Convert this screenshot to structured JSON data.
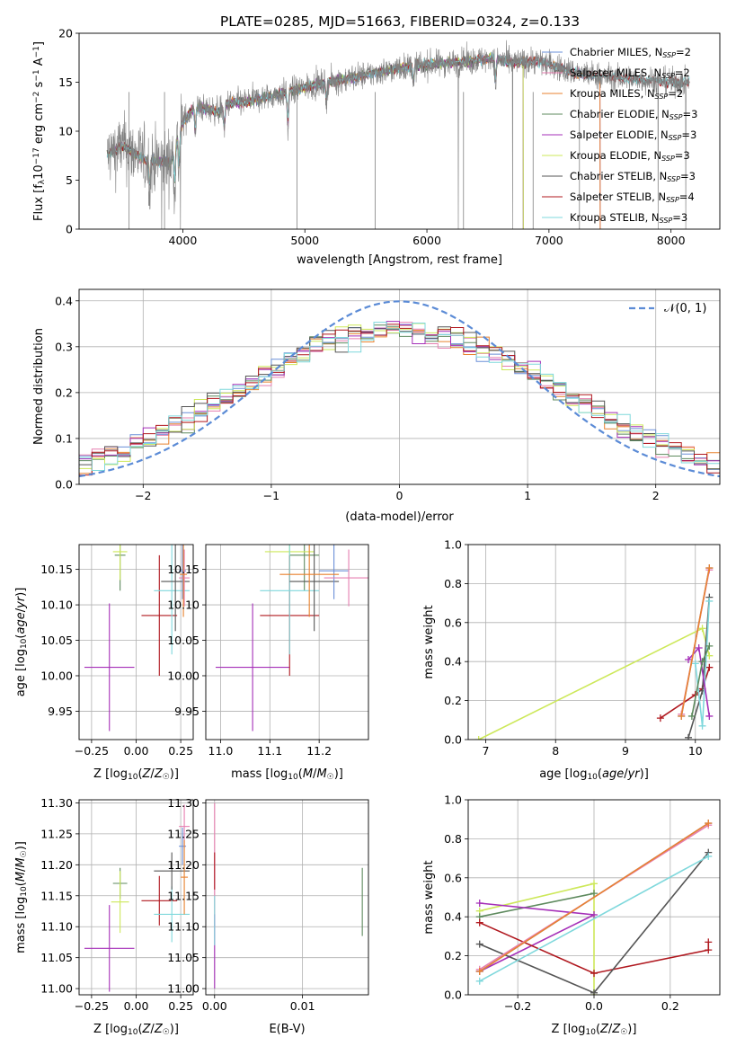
{
  "figure": {
    "title": "PLATE=0285, MJD=51663, FIBERID=0324, z=0.133"
  },
  "colors": {
    "Chabrier MILES": "#6a8fd8",
    "Salpeter MILES": "#e67fb0",
    "Kroupa MILES": "#e8822f",
    "Chabrier ELODIE": "#5e8a5e",
    "Salpeter ELODIE": "#a52fb8",
    "Kroupa ELODIE": "#cde85a",
    "Chabrier STELIB": "#555555",
    "Salpeter STELIB": "#b0181f",
    "Kroupa STELIB": "#7fd8dc"
  },
  "chart_data": [
    {
      "id": "spectrum",
      "type": "line",
      "xlabel": "wavelength [Angstrom, rest frame]",
      "ylabel": "Flux [f_λ 10^-17 erg cm^-2 s^-1 A^-1]",
      "xlim": [
        3150,
        8400
      ],
      "ylim": [
        0,
        20
      ],
      "xticks": [
        4000,
        5000,
        6000,
        7000,
        8000
      ],
      "yticks": [
        0,
        5,
        10,
        15,
        20
      ],
      "legend_position": "upper-right",
      "legend": [
        {
          "name": "Chabrier MILES",
          "label": "Chabrier MILES, N",
          "sub": "SSP",
          "tail": "=2"
        },
        {
          "name": "Salpeter MILES",
          "label": "Salpeter MILES, N",
          "sub": "SSP",
          "tail": "=2"
        },
        {
          "name": "Kroupa MILES",
          "label": "Kroupa MILES, N",
          "sub": "SSP",
          "tail": "=2"
        },
        {
          "name": "Chabrier ELODIE",
          "label": "Chabrier ELODIE, N",
          "sub": "SSP",
          "tail": "=3"
        },
        {
          "name": "Salpeter ELODIE",
          "label": "Salpeter ELODIE, N",
          "sub": "SSP",
          "tail": "=3"
        },
        {
          "name": "Kroupa ELODIE",
          "label": "Kroupa ELODIE, N",
          "sub": "SSP",
          "tail": "=3"
        },
        {
          "name": "Chabrier STELIB",
          "label": "Chabrier STELIB, N",
          "sub": "SSP",
          "tail": "=3"
        },
        {
          "name": "Salpeter STELIB",
          "label": "Salpeter STELIB, N",
          "sub": "SSP",
          "tail": "=4"
        },
        {
          "name": "Kroupa STELIB",
          "label": "Kroupa STELIB, N",
          "sub": "SSP",
          "tail": "=3"
        }
      ],
      "data_x": [
        3380,
        3500,
        3700,
        3900,
        4000,
        4100,
        4300,
        4350,
        4500,
        4700,
        4860,
        5000,
        5200,
        5400,
        5600,
        5800,
        6000,
        6200,
        6400,
        6563,
        6700,
        6900,
        7000,
        7200,
        7500,
        7800,
        8000,
        8150
      ],
      "data_y": [
        7.5,
        8.5,
        7.0,
        6.8,
        11.0,
        12.5,
        12.0,
        12.8,
        13.0,
        13.5,
        14.0,
        14.5,
        15.0,
        15.5,
        16.0,
        16.5,
        16.8,
        17.0,
        17.2,
        17.5,
        17.0,
        17.2,
        16.8,
        16.0,
        15.5,
        15.2,
        15.0,
        15.0
      ]
    },
    {
      "id": "residuals",
      "type": "line",
      "xlabel": "(data-model)/error",
      "ylabel": "Normed distribution",
      "xlim": [
        -2.5,
        2.5
      ],
      "ylim": [
        0,
        0.425
      ],
      "xticks": [
        -2,
        -1,
        0,
        1,
        2
      ],
      "yticks": [
        0.0,
        0.1,
        0.2,
        0.3,
        0.4
      ],
      "legend": "𝒩(0, 1)",
      "legend_position": "upper-right"
    },
    {
      "id": "age-vs-Z",
      "type": "scatter",
      "xlabel": "Z [log10(Z/Z☉)]",
      "ylabel": "age [log10(age/yr)]",
      "xlim": [
        -0.32,
        0.32
      ],
      "ylim": [
        9.91,
        10.185
      ],
      "xticks": [
        -0.25,
        0.0,
        0.25
      ],
      "yticks": [
        9.95,
        10.0,
        10.05,
        10.1,
        10.15
      ],
      "points": [
        {
          "s": "Salpeter ELODIE",
          "x": -0.15,
          "xe": 0.14,
          "y": 10.012,
          "ye": 0.09
        },
        {
          "s": "Chabrier ELODIE",
          "x": -0.09,
          "xe": 0.03,
          "y": 10.17,
          "ye": 0.05
        },
        {
          "s": "Kroupa ELODIE",
          "x": -0.09,
          "xe": 0.04,
          "y": 10.175,
          "ye": 0.04
        },
        {
          "s": "Salpeter STELIB",
          "x": 0.13,
          "xe": 0.1,
          "y": 10.085,
          "ye": 0.085
        },
        {
          "s": "Kroupa STELIB",
          "x": 0.2,
          "xe": 0.1,
          "y": 10.12,
          "ye": 0.09
        },
        {
          "s": "Chabrier STELIB",
          "x": 0.22,
          "xe": 0.08,
          "y": 10.133,
          "ye": 0.07
        },
        {
          "s": "Chabrier MILES",
          "x": 0.26,
          "xe": 0.02,
          "y": 10.148,
          "ye": 0.04
        },
        {
          "s": "Salpeter MILES",
          "x": 0.27,
          "xe": 0.03,
          "y": 10.138,
          "ye": 0.04
        },
        {
          "s": "Kroupa MILES",
          "x": 0.265,
          "xe": 0.02,
          "y": 10.143,
          "ye": 0.06
        }
      ]
    },
    {
      "id": "age-vs-mass",
      "type": "scatter",
      "xlabel": "mass [log10(M/M☉)]",
      "ylabel": "",
      "xlim": [
        10.97,
        11.3
      ],
      "ylim": [
        9.91,
        10.185
      ],
      "xticks": [
        11.0,
        11.1,
        11.2
      ],
      "yticks": [
        9.95,
        10.0,
        10.05,
        10.1,
        10.15
      ],
      "points": [
        {
          "s": "Salpeter ELODIE",
          "x": 11.065,
          "xe": 0.075,
          "y": 10.012,
          "ye": 0.09
        },
        {
          "s": "Chabrier ELODIE",
          "x": 11.17,
          "xe": 0.03,
          "y": 10.17,
          "ye": 0.05
        },
        {
          "s": "Kroupa ELODIE",
          "x": 11.14,
          "xe": 0.05,
          "y": 10.175,
          "ye": 0.04
        },
        {
          "s": "Salpeter STELIB",
          "x": 11.14,
          "xe": 0.06,
          "y": 10.085,
          "ye": 0.085
        },
        {
          "s": "Kroupa STELIB",
          "x": 11.14,
          "xe": 0.06,
          "y": 10.12,
          "ye": 0.09
        },
        {
          "s": "Chabrier STELIB",
          "x": 11.19,
          "xe": 0.05,
          "y": 10.133,
          "ye": 0.07
        },
        {
          "s": "Chabrier MILES",
          "x": 11.23,
          "xe": 0.03,
          "y": 10.148,
          "ye": 0.04
        },
        {
          "s": "Salpeter MILES",
          "x": 11.26,
          "xe": 0.05,
          "y": 10.138,
          "ye": 0.04
        },
        {
          "s": "Kroupa MILES",
          "x": 11.18,
          "xe": 0.06,
          "y": 10.143,
          "ye": 0.06
        }
      ]
    },
    {
      "id": "weight-vs-age",
      "type": "line",
      "xlabel": "age [log10(age/yr)]",
      "ylabel": "mass weight",
      "xlim": [
        6.75,
        10.35
      ],
      "ylim": [
        0,
        1.0
      ],
      "xticks": [
        7,
        8,
        9,
        10
      ],
      "yticks": [
        0.0,
        0.2,
        0.4,
        0.6,
        0.8,
        1.0
      ],
      "series": [
        {
          "s": "Kroupa ELODIE",
          "x": [
            6.9,
            10.1,
            10.2
          ],
          "y": [
            0.0,
            0.57,
            0.43
          ]
        },
        {
          "s": "Salpeter STELIB",
          "x": [
            9.5,
            10.0,
            10.1,
            10.2
          ],
          "y": [
            0.11,
            0.23,
            0.26,
            0.37
          ]
        },
        {
          "s": "Chabrier STELIB",
          "x": [
            9.9,
            10.1,
            10.2
          ],
          "y": [
            0.01,
            0.25,
            0.73
          ]
        },
        {
          "s": "Kroupa STELIB",
          "x": [
            10.0,
            10.1,
            10.2
          ],
          "y": [
            0.39,
            0.07,
            0.71
          ]
        },
        {
          "s": "Salpeter ELODIE",
          "x": [
            9.9,
            10.05,
            10.2
          ],
          "y": [
            0.41,
            0.47,
            0.12
          ]
        },
        {
          "s": "Chabrier ELODIE",
          "x": [
            9.95,
            10.1,
            10.2
          ],
          "y": [
            0.12,
            0.4,
            0.48
          ]
        },
        {
          "s": "Chabrier MILES",
          "x": [
            9.8,
            10.2
          ],
          "y": [
            0.12,
            0.88
          ]
        },
        {
          "s": "Salpeter MILES",
          "x": [
            9.8,
            10.2
          ],
          "y": [
            0.13,
            0.87
          ]
        },
        {
          "s": "Kroupa MILES",
          "x": [
            9.8,
            10.2
          ],
          "y": [
            0.12,
            0.88
          ]
        }
      ]
    },
    {
      "id": "mass-vs-Z",
      "type": "scatter",
      "xlabel": "Z [log10(Z/Z☉)]",
      "ylabel": "mass [log10(M/M☉)]",
      "xlim": [
        -0.32,
        0.32
      ],
      "ylim": [
        10.99,
        11.305
      ],
      "xticks": [
        -0.25,
        0.0,
        0.25
      ],
      "yticks": [
        11.0,
        11.05,
        11.1,
        11.15,
        11.2,
        11.25,
        11.3
      ],
      "points": [
        {
          "s": "Salpeter ELODIE",
          "x": -0.15,
          "xe": 0.14,
          "y": 11.065,
          "ye": 0.07
        },
        {
          "s": "Chabrier ELODIE",
          "x": -0.09,
          "xe": 0.04,
          "y": 11.17,
          "ye": 0.025
        },
        {
          "s": "Kroupa ELODIE",
          "x": -0.09,
          "xe": 0.05,
          "y": 11.14,
          "ye": 0.05
        },
        {
          "s": "Salpeter STELIB",
          "x": 0.13,
          "xe": 0.1,
          "y": 11.142,
          "ye": 0.04
        },
        {
          "s": "Kroupa STELIB",
          "x": 0.2,
          "xe": 0.1,
          "y": 11.12,
          "ye": 0.045
        },
        {
          "s": "Chabrier STELIB",
          "x": 0.2,
          "xe": 0.1,
          "y": 11.19,
          "ye": 0.03
        },
        {
          "s": "Chabrier MILES",
          "x": 0.26,
          "xe": 0.02,
          "y": 11.23,
          "ye": 0.03
        },
        {
          "s": "Salpeter MILES",
          "x": 0.27,
          "xe": 0.03,
          "y": 11.262,
          "ye": 0.035
        },
        {
          "s": "Kroupa MILES",
          "x": 0.27,
          "xe": 0.02,
          "y": 11.18,
          "ye": 0.06
        }
      ]
    },
    {
      "id": "mass-vs-ebv",
      "type": "scatter",
      "xlabel": "E(B-V)",
      "ylabel": "",
      "xlim": [
        -0.001,
        0.0175
      ],
      "ylim": [
        10.99,
        11.305
      ],
      "xticks": [
        0.0,
        0.01
      ],
      "yticks": [
        11.0,
        11.05,
        11.1,
        11.15,
        11.2,
        11.25,
        11.3
      ],
      "points": [
        {
          "s": "Salpeter MILES",
          "x": 0.0,
          "xe": 0,
          "y": 11.2,
          "ye": 0.1
        },
        {
          "s": "Salpeter ELODIE",
          "x": 0.0,
          "xe": 0,
          "y": 11.06,
          "ye": 0.06
        },
        {
          "s": "Salpeter STELIB",
          "x": 0.0,
          "xe": 0,
          "y": 11.19,
          "ye": 0.03
        },
        {
          "s": "Kroupa STELIB",
          "x": 0.0,
          "xe": 0,
          "y": 11.11,
          "ye": 0.04
        },
        {
          "s": "Chabrier ELODIE",
          "x": 0.0168,
          "xe": 0,
          "y": 11.14,
          "ye": 0.055
        }
      ]
    },
    {
      "id": "weight-vs-Z",
      "type": "line",
      "xlabel": "Z [log10(Z/Z☉)]",
      "ylabel": "mass weight",
      "xlim": [
        -0.33,
        0.33
      ],
      "ylim": [
        0,
        1.0
      ],
      "xticks": [
        -0.2,
        0.0,
        0.2
      ],
      "yticks": [
        0.0,
        0.2,
        0.4,
        0.6,
        0.8,
        1.0
      ],
      "series": [
        {
          "s": "Kroupa ELODIE",
          "x": [
            -0.3,
            0.0,
            0.0
          ],
          "y": [
            0.43,
            0.57,
            0.0
          ]
        },
        {
          "s": "Chabrier ELODIE",
          "x": [
            -0.3,
            0.0
          ],
          "y": [
            0.4,
            0.52
          ]
        },
        {
          "s": "Salpeter ELODIE",
          "x": [
            -0.3,
            0.0,
            -0.3
          ],
          "y": [
            0.47,
            0.41,
            0.12
          ]
        },
        {
          "s": "Salpeter STELIB",
          "x": [
            -0.3,
            0.0,
            0.3,
            0.3
          ],
          "y": [
            0.37,
            0.11,
            0.23,
            0.27
          ]
        },
        {
          "s": "Chabrier STELIB",
          "x": [
            -0.3,
            0.0,
            0.3
          ],
          "y": [
            0.26,
            0.01,
            0.73
          ]
        },
        {
          "s": "Kroupa STELIB",
          "x": [
            -0.3,
            0.3
          ],
          "y": [
            0.07,
            0.71
          ]
        },
        {
          "s": "Chabrier MILES",
          "x": [
            -0.3,
            0.3
          ],
          "y": [
            0.12,
            0.88
          ]
        },
        {
          "s": "Salpeter MILES",
          "x": [
            -0.3,
            0.3
          ],
          "y": [
            0.13,
            0.87
          ]
        },
        {
          "s": "Kroupa MILES",
          "x": [
            -0.3,
            0.3
          ],
          "y": [
            0.12,
            0.88
          ]
        }
      ]
    }
  ]
}
